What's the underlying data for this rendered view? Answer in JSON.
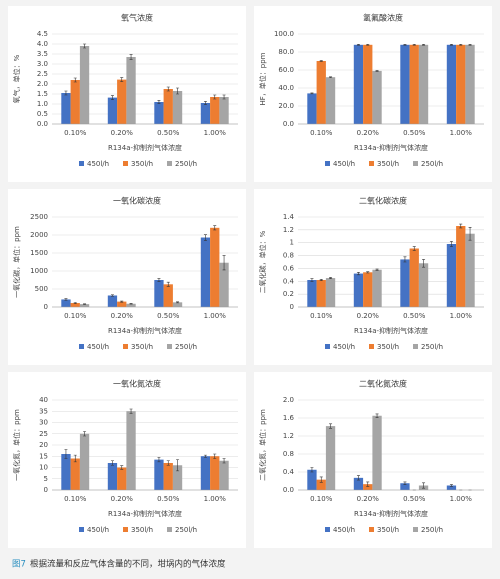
{
  "chart_data": [
    {
      "type": "bar",
      "title": "氧气浓度",
      "ylabel": "氧气，单位：%",
      "xlabel": "R134a-抑制剂气体浓度",
      "categories": [
        "0.10%",
        "0.20%",
        "0.50%",
        "1.00%"
      ],
      "ylim": [
        0,
        4.5
      ],
      "yticks": [
        {
          "value": 0,
          "label": "0.0"
        },
        0.5,
        {
          "value": 1,
          "label": "1.0"
        },
        1.5,
        {
          "value": 2,
          "label": "2.0"
        },
        2.5,
        {
          "value": 3,
          "label": "3.0"
        },
        3.5,
        {
          "value": 4,
          "label": "4.0"
        },
        4.5
      ],
      "grid": true,
      "series": [
        {
          "name": "450l/h",
          "color": "#4472c4",
          "values": [
            1.55,
            1.32,
            1.1,
            1.05
          ],
          "errors": [
            0.1,
            0.1,
            0.08,
            0.08
          ]
        },
        {
          "name": "350l/h",
          "color": "#ed7d31",
          "values": [
            2.2,
            2.22,
            1.75,
            1.35
          ],
          "errors": [
            0.1,
            0.1,
            0.1,
            0.1
          ]
        },
        {
          "name": "250l/h",
          "color": "#a5a5a5",
          "values": [
            3.9,
            3.35,
            1.65,
            1.35
          ],
          "errors": [
            0.1,
            0.12,
            0.15,
            0.1
          ]
        }
      ]
    },
    {
      "type": "bar",
      "title": "氢氟酸浓度",
      "ylabel": "HF，单位：ppm",
      "xlabel": "R134a-抑制剂气体浓度",
      "categories": [
        "0.10%",
        "0.20%",
        "0.50%",
        "1.00%"
      ],
      "ylim": [
        0,
        100
      ],
      "yticks": [
        {
          "value": 0,
          "label": "0.0"
        },
        {
          "value": 20,
          "label": "20.0"
        },
        {
          "value": 40,
          "label": "40.0"
        },
        {
          "value": 60,
          "label": "60.0"
        },
        {
          "value": 80,
          "label": "80.0"
        },
        {
          "value": 100,
          "label": "100.0"
        }
      ],
      "grid": true,
      "series": [
        {
          "name": "450l/h",
          "color": "#4472c4",
          "values": [
            34,
            88,
            88,
            88
          ],
          "errors": [
            0.5,
            0.5,
            0.5,
            0.5
          ]
        },
        {
          "name": "350l/h",
          "color": "#ed7d31",
          "values": [
            70,
            88,
            88,
            88
          ],
          "errors": [
            0.5,
            0.5,
            0.5,
            0.5
          ]
        },
        {
          "name": "250l/h",
          "color": "#a5a5a5",
          "values": [
            52,
            59,
            88,
            88
          ],
          "errors": [
            0.5,
            0.5,
            0.5,
            0.5
          ]
        }
      ]
    },
    {
      "type": "bar",
      "title": "一氧化碳浓度",
      "ylabel": "一氧化碳，单位：ppm",
      "xlabel": "R134a-抑制剂气体浓度",
      "categories": [
        "0.10%",
        "0.20%",
        "0.50%",
        "1.00%"
      ],
      "ylim": [
        0,
        2500
      ],
      "yticks": [
        0,
        500,
        1000,
        1500,
        2000,
        2500
      ],
      "grid": true,
      "series": [
        {
          "name": "450l/h",
          "color": "#4472c4",
          "values": [
            210,
            320,
            750,
            1930
          ],
          "errors": [
            20,
            20,
            40,
            80
          ]
        },
        {
          "name": "350l/h",
          "color": "#ed7d31",
          "values": [
            110,
            150,
            630,
            2200
          ],
          "errors": [
            15,
            15,
            60,
            60
          ]
        },
        {
          "name": "250l/h",
          "color": "#a5a5a5",
          "values": [
            80,
            90,
            130,
            1230
          ],
          "errors": [
            10,
            10,
            15,
            200
          ]
        }
      ]
    },
    {
      "type": "bar",
      "title": "二氧化碳浓度",
      "ylabel": "二氧化碳，单位：%",
      "xlabel": "R134a-抑制剂气体浓度",
      "categories": [
        "0.10%",
        "0.20%",
        "0.50%",
        "1.00%"
      ],
      "ylim": [
        0,
        1.4
      ],
      "yticks": [
        0,
        0.2,
        0.4,
        0.6,
        0.8,
        1,
        1.2,
        1.4
      ],
      "grid": true,
      "series": [
        {
          "name": "450l/h",
          "color": "#4472c4",
          "values": [
            0.42,
            0.52,
            0.74,
            0.98
          ],
          "errors": [
            0.02,
            0.02,
            0.04,
            0.04
          ]
        },
        {
          "name": "350l/h",
          "color": "#ed7d31",
          "values": [
            0.42,
            0.54,
            0.91,
            1.26
          ],
          "errors": [
            0.01,
            0.01,
            0.03,
            0.03
          ]
        },
        {
          "name": "250l/h",
          "color": "#a5a5a5",
          "values": [
            0.45,
            0.58,
            0.68,
            1.14
          ],
          "errors": [
            0.01,
            0.01,
            0.06,
            0.1
          ]
        }
      ]
    },
    {
      "type": "bar",
      "title": "一氧化氮浓度",
      "ylabel": "一氧化氮，单位：ppm",
      "xlabel": "R134a-抑制剂气体浓度",
      "categories": [
        "0.10%",
        "0.20%",
        "0.50%",
        "1.00%"
      ],
      "ylim": [
        0,
        40
      ],
      "yticks": [
        0,
        5,
        10,
        15,
        20,
        25,
        30,
        35,
        40
      ],
      "grid": true,
      "series": [
        {
          "name": "450l/h",
          "color": "#4472c4",
          "values": [
            16,
            12,
            13.5,
            15
          ],
          "errors": [
            2,
            1,
            1,
            0.5
          ]
        },
        {
          "name": "350l/h",
          "color": "#ed7d31",
          "values": [
            14,
            10,
            12,
            15
          ],
          "errors": [
            1.5,
            0.8,
            1,
            1
          ]
        },
        {
          "name": "250l/h",
          "color": "#a5a5a5",
          "values": [
            25,
            35,
            11,
            13
          ],
          "errors": [
            1,
            1,
            2.5,
            1
          ]
        }
      ]
    },
    {
      "type": "bar",
      "title": "二氧化氮浓度",
      "ylabel": "二氧化氮，单位：ppm",
      "xlabel": "R134a-抑制剂气体浓度",
      "categories": [
        "0.10%",
        "0.20%",
        "0.50%",
        "1.00%"
      ],
      "ylim": [
        0,
        2
      ],
      "yticks": [
        {
          "value": 0,
          "label": "0.0"
        },
        0.4,
        0.8,
        1.2,
        1.6,
        {
          "value": 2,
          "label": "2.0"
        }
      ],
      "grid": true,
      "series": [
        {
          "name": "450l/h",
          "color": "#4472c4",
          "values": [
            0.45,
            0.27,
            0.15,
            0.1
          ],
          "errors": [
            0.05,
            0.05,
            0.03,
            0.02
          ]
        },
        {
          "name": "350l/h",
          "color": "#ed7d31",
          "values": [
            0.23,
            0.13,
            0,
            0
          ],
          "errors": [
            0.06,
            0.05,
            0,
            0
          ]
        },
        {
          "name": "250l/h",
          "color": "#a5a5a5",
          "values": [
            1.42,
            1.65,
            0.1,
            0
          ],
          "errors": [
            0.05,
            0.04,
            0.06,
            0
          ]
        }
      ]
    }
  ],
  "caption": {
    "label": "图7",
    "text": "根据流量和反应气体含量的不同，坩埚内的气体浓度"
  }
}
